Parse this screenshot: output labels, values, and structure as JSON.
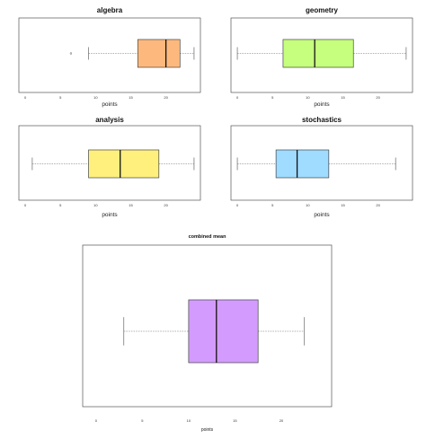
{
  "chart_data": [
    {
      "type": "boxplot",
      "title": "algebra",
      "xlabel": "points",
      "xlim": [
        0,
        24
      ],
      "xticks": [
        0,
        5,
        10,
        15,
        20
      ],
      "box": {
        "min": 9,
        "q1": 16,
        "median": 20,
        "q3": 22,
        "max": 24
      },
      "outliers": [
        6.5
      ],
      "fill": "#FDB97D"
    },
    {
      "type": "boxplot",
      "title": "geometry",
      "xlabel": "points",
      "xlim": [
        0,
        24
      ],
      "xticks": [
        0,
        5,
        10,
        15,
        20
      ],
      "box": {
        "min": 0,
        "q1": 6.5,
        "median": 11,
        "q3": 16.5,
        "max": 24
      },
      "outliers": [],
      "fill": "#C6FF7E"
    },
    {
      "type": "boxplot",
      "title": "analysis",
      "xlabel": "points",
      "xlim": [
        0,
        24
      ],
      "xticks": [
        0,
        5,
        10,
        15,
        20
      ],
      "box": {
        "min": 1,
        "q1": 9,
        "median": 13.5,
        "q3": 19,
        "max": 24
      },
      "outliers": [],
      "fill": "#FFF07E"
    },
    {
      "type": "boxplot",
      "title": "stochastics",
      "xlabel": "points",
      "xlim": [
        0,
        24
      ],
      "xticks": [
        0,
        5,
        10,
        15,
        20
      ],
      "box": {
        "min": 0,
        "q1": 5.5,
        "median": 8.5,
        "q3": 13,
        "max": 22.5
      },
      "outliers": [],
      "fill": "#9FDCFF"
    },
    {
      "type": "boxplot",
      "title": "combined mean",
      "xlabel": "points",
      "xlim": [
        -0.5,
        24.5
      ],
      "xticks": [
        0,
        5,
        10,
        15,
        20
      ],
      "box": {
        "min": 3,
        "q1": 10,
        "median": 13,
        "q3": 17.5,
        "max": 22.5
      },
      "outliers": [],
      "fill": "#D49BFF"
    }
  ],
  "colors": {
    "frame": "#555555",
    "whisker": "#666666",
    "box_stroke": "#444444"
  }
}
